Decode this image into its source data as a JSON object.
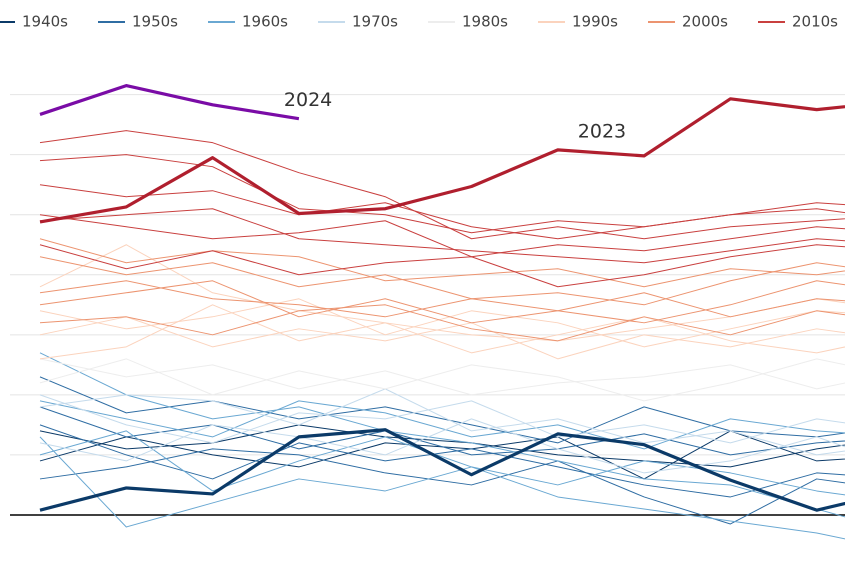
{
  "chart_data": {
    "type": "line",
    "categories": [
      null,
      null,
      null,
      null,
      null,
      null,
      null,
      null,
      null,
      null,
      null
    ],
    "ylim": [
      -0.75,
      7.6
    ],
    "yticks": [
      1,
      2,
      3,
      4,
      5,
      6,
      7
    ],
    "grid": true,
    "legend": "top",
    "series": [
      {
        "name": "1940s",
        "color": "#0b3a68",
        "lines": [
          [
            1.4,
            1.1,
            1.2,
            1.5,
            1.3,
            1.2,
            1.0,
            0.9,
            0.8,
            1.1,
            1.3
          ],
          [
            0.9,
            1.3,
            1.0,
            0.8,
            1.2,
            1.1,
            1.3,
            0.6,
            1.4,
            0.9,
            1.0
          ]
        ]
      },
      {
        "name": "1950s",
        "color": "#2f6da3",
        "lines": [
          [
            2.3,
            1.7,
            1.9,
            1.6,
            1.8,
            1.5,
            1.2,
            1.8,
            1.4,
            1.3,
            1.5
          ],
          [
            1.5,
            1.0,
            0.6,
            1.2,
            0.9,
            1.1,
            0.8,
            0.5,
            0.3,
            0.7,
            0.6
          ],
          [
            0.6,
            0.8,
            1.1,
            1.0,
            0.7,
            0.5,
            0.9,
            0.3,
            -0.15,
            0.6,
            0.4
          ],
          [
            1.8,
            1.3,
            1.5,
            1.1,
            1.4,
            1.0,
            1.1,
            1.35,
            1.0,
            1.2,
            1.3
          ]
        ]
      },
      {
        "name": "1960s",
        "color": "#6aa8d2",
        "lines": [
          [
            2.7,
            2.0,
            1.6,
            1.8,
            1.4,
            1.2,
            0.9,
            0.6,
            0.5,
            0.1,
            -0.3
          ],
          [
            1.3,
            -0.2,
            0.2,
            0.6,
            0.4,
            0.8,
            0.3,
            0.1,
            -0.1,
            -0.3,
            -0.6
          ],
          [
            1.9,
            1.6,
            1.3,
            1.9,
            1.7,
            1.3,
            1.5,
            1.1,
            1.6,
            1.4,
            1.3
          ],
          [
            1.0,
            1.4,
            0.4,
            0.9,
            1.3,
            0.8,
            0.5,
            0.9,
            0.7,
            0.4,
            0.2
          ]
        ]
      },
      {
        "name": "1970s",
        "color": "#c5dbec",
        "lines": [
          [
            1.8,
            2.0,
            1.9,
            1.5,
            2.1,
            1.4,
            1.6,
            1.2,
            1.4,
            1.0,
            1.2
          ],
          [
            1.2,
            0.9,
            1.5,
            1.3,
            1.0,
            1.6,
            1.1,
            0.7,
            0.9,
            1.3,
            0.8
          ],
          [
            2.0,
            1.5,
            1.2,
            1.7,
            1.6,
            1.9,
            1.3,
            1.5,
            1.2,
            1.6,
            1.4
          ]
        ]
      },
      {
        "name": "1980s",
        "color": "#ededed",
        "lines": [
          [
            2.6,
            2.3,
            2.5,
            2.1,
            2.4,
            2.0,
            2.2,
            2.3,
            2.5,
            2.1,
            2.4
          ],
          [
            2.2,
            2.6,
            2.0,
            2.4,
            2.1,
            2.5,
            2.3,
            1.9,
            2.2,
            2.6,
            2.3
          ]
        ]
      },
      {
        "name": "1990s",
        "color": "#fbd3bd",
        "lines": [
          [
            3.0,
            3.3,
            2.8,
            3.1,
            2.9,
            3.2,
            2.6,
            3.0,
            2.8,
            3.1,
            2.9
          ],
          [
            2.6,
            2.8,
            3.5,
            2.9,
            3.2,
            2.7,
            3.0,
            3.3,
            2.9,
            2.7,
            3.0
          ],
          [
            3.8,
            4.5,
            3.7,
            3.4,
            3.2,
            3.0,
            2.9,
            3.1,
            3.3,
            3.6,
            3.4
          ],
          [
            3.4,
            3.1,
            3.3,
            3.6,
            3.0,
            3.4,
            3.2,
            2.8,
            3.1,
            3.4,
            3.3
          ]
        ]
      },
      {
        "name": "2000s",
        "color": "#ec9470",
        "lines": [
          [
            3.7,
            3.9,
            3.6,
            3.5,
            3.3,
            3.6,
            3.4,
            3.2,
            3.5,
            3.9,
            3.7
          ],
          [
            4.3,
            4.0,
            4.2,
            3.8,
            4.0,
            3.6,
            3.7,
            3.5,
            3.9,
            4.2,
            4.0
          ],
          [
            3.2,
            3.3,
            3.0,
            3.4,
            3.5,
            3.1,
            2.9,
            3.3,
            3.0,
            3.4,
            3.2
          ],
          [
            4.6,
            4.2,
            4.4,
            4.3,
            3.9,
            4.0,
            4.1,
            3.8,
            4.1,
            4.0,
            4.2
          ],
          [
            3.5,
            3.7,
            3.9,
            3.3,
            3.6,
            3.2,
            3.4,
            3.7,
            3.3,
            3.6,
            3.5
          ]
        ]
      },
      {
        "name": "2010s",
        "color": "#c9403f",
        "lines": [
          [
            6.2,
            6.4,
            6.2,
            5.7,
            5.3,
            4.6,
            4.8,
            4.6,
            4.8,
            4.9,
            5.0
          ],
          [
            5.5,
            5.3,
            5.4,
            5.0,
            5.2,
            4.8,
            4.6,
            4.8,
            5.0,
            5.1,
            4.9
          ],
          [
            4.9,
            5.0,
            5.1,
            4.6,
            4.5,
            4.4,
            4.3,
            4.2,
            4.4,
            4.6,
            4.5
          ],
          [
            4.5,
            4.1,
            4.4,
            4.0,
            4.2,
            4.3,
            3.8,
            4.0,
            4.3,
            4.5,
            4.4
          ],
          [
            5.9,
            6.0,
            5.8,
            5.1,
            5.0,
            4.7,
            4.9,
            4.8,
            5.0,
            5.2,
            5.1
          ],
          [
            5.0,
            4.8,
            4.6,
            4.7,
            4.9,
            4.3,
            4.5,
            4.4,
            4.6,
            4.8,
            4.7
          ]
        ]
      }
    ],
    "highlights": [
      {
        "color": "#0b3a68",
        "values": [
          0.08,
          0.45,
          0.35,
          1.3,
          1.42,
          0.67,
          1.35,
          1.17,
          0.58,
          0.08,
          0.42
        ]
      },
      {
        "label": "2023",
        "color": "#b01f2e",
        "values": [
          4.88,
          5.13,
          5.95,
          5.02,
          5.1,
          5.47,
          6.08,
          5.98,
          6.93,
          6.75,
          6.9
        ]
      },
      {
        "label": "2024",
        "color": "#7a0ca6",
        "values": [
          6.67,
          7.15,
          6.83,
          6.6,
          null,
          null,
          null,
          null,
          null,
          null,
          null
        ]
      }
    ]
  }
}
